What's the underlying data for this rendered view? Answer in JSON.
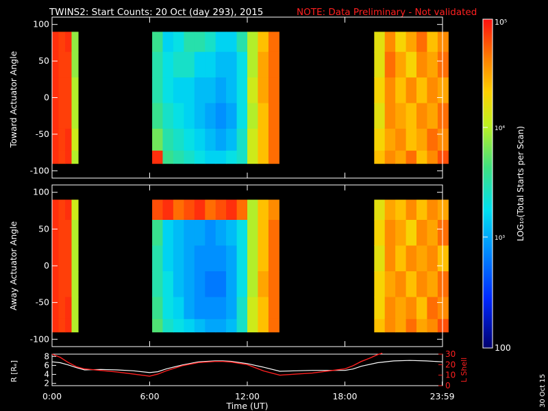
{
  "header": {
    "title": "TWINS2: Start Counts: 20 Oct (day 293), 2015",
    "note": "NOTE: Data Preliminary - Not validated"
  },
  "colorbar": {
    "tick_labels": [
      "10⁵",
      "10⁴",
      "10³",
      "100"
    ],
    "label": "LOG₁₀(Total Starts per Scan)"
  },
  "stamp": "30 Oct 15",
  "colors": {
    "background": "#000000",
    "axes": "#ffffff",
    "title_note": "#ff2020",
    "l_shell_line": "#ff2020",
    "r_line": "#ffffff"
  },
  "chart_data": [
    {
      "type": "heatmap",
      "ylabel": "Toward Actuator Angle",
      "ylim": [
        -110,
        110
      ],
      "yticks": [
        100,
        50,
        0,
        -50,
        -100
      ],
      "xlim": [
        0,
        24
      ],
      "x_hours": [
        0.0,
        0.4,
        0.8,
        1.2,
        6.15,
        6.8,
        7.45,
        8.1,
        8.75,
        9.4,
        10.05,
        10.7,
        11.35,
        12.0,
        12.65,
        13.3,
        19.8,
        20.45,
        21.1,
        21.75,
        22.4,
        23.05,
        23.7
      ],
      "y_angles": [
        80,
        45,
        10,
        -25,
        -60,
        -85
      ],
      "log_counts": [
        [
          4.9,
          4.85,
          4.9,
          3.9,
          3.6,
          3.2,
          3.3,
          3.5,
          3.5,
          3.4,
          3.2,
          3.2,
          3.5,
          4.0,
          4.4,
          4.7,
          4.2,
          4.6,
          4.3,
          4.5,
          4.7,
          4.4,
          4.6
        ],
        [
          4.9,
          4.85,
          4.85,
          3.9,
          3.5,
          3.3,
          3.4,
          3.4,
          3.2,
          3.2,
          3.1,
          3.1,
          3.3,
          4.0,
          4.5,
          4.7,
          4.2,
          4.7,
          4.5,
          4.3,
          4.6,
          4.5,
          4.7
        ],
        [
          4.9,
          4.85,
          4.85,
          4.0,
          3.5,
          3.3,
          3.2,
          3.2,
          3.1,
          3.1,
          3.0,
          3.1,
          3.3,
          4.1,
          4.5,
          4.7,
          4.3,
          4.6,
          4.4,
          4.6,
          4.4,
          4.6,
          4.5
        ],
        [
          4.9,
          4.85,
          4.85,
          4.0,
          3.6,
          3.4,
          3.3,
          3.2,
          3.1,
          3.0,
          2.9,
          3.0,
          3.3,
          4.0,
          4.4,
          4.7,
          4.2,
          4.6,
          4.5,
          4.4,
          4.6,
          4.5,
          4.7
        ],
        [
          4.9,
          4.85,
          4.9,
          4.1,
          3.8,
          3.5,
          3.4,
          3.3,
          3.2,
          3.1,
          3.0,
          3.1,
          3.4,
          4.1,
          4.4,
          4.7,
          4.3,
          4.5,
          4.6,
          4.4,
          4.5,
          4.7,
          4.6
        ],
        [
          4.9,
          4.85,
          4.9,
          4.0,
          4.9,
          3.6,
          3.5,
          3.4,
          3.3,
          3.2,
          3.2,
          3.3,
          3.4,
          4.1,
          4.4,
          4.7,
          4.4,
          4.6,
          4.5,
          4.7,
          4.4,
          4.6,
          4.8
        ]
      ]
    },
    {
      "type": "heatmap",
      "ylabel": "Away Actuator Angle",
      "ylim": [
        -110,
        110
      ],
      "yticks": [
        100,
        50,
        0,
        -50,
        -100
      ],
      "xlim": [
        0,
        24
      ],
      "x_hours": [
        0.0,
        0.4,
        0.8,
        1.2,
        6.15,
        6.8,
        7.45,
        8.1,
        8.75,
        9.4,
        10.05,
        10.7,
        11.35,
        12.0,
        12.65,
        13.3,
        19.8,
        20.45,
        21.1,
        21.75,
        22.4,
        23.05,
        23.7
      ],
      "y_angles": [
        80,
        45,
        10,
        -25,
        -60,
        -85
      ],
      "log_counts": [
        [
          4.9,
          4.85,
          4.9,
          4.1,
          4.8,
          4.9,
          4.7,
          4.8,
          4.9,
          4.7,
          4.8,
          4.9,
          4.7,
          4.0,
          4.4,
          4.6,
          4.2,
          4.5,
          4.4,
          4.6,
          4.4,
          4.6,
          4.5
        ],
        [
          4.9,
          4.85,
          4.85,
          4.0,
          3.6,
          3.2,
          3.1,
          3.0,
          3.0,
          2.9,
          3.0,
          3.1,
          3.3,
          4.0,
          4.4,
          4.7,
          4.3,
          4.6,
          4.5,
          4.3,
          4.6,
          4.5,
          4.7
        ],
        [
          4.9,
          4.85,
          4.85,
          4.0,
          3.5,
          3.2,
          3.1,
          3.0,
          2.9,
          2.9,
          2.9,
          3.0,
          3.3,
          4.0,
          4.4,
          4.7,
          4.2,
          4.6,
          4.4,
          4.6,
          4.5,
          4.6,
          4.4
        ],
        [
          4.9,
          4.85,
          4.85,
          4.0,
          3.5,
          3.3,
          3.1,
          3.0,
          2.9,
          2.8,
          2.8,
          3.0,
          3.3,
          4.0,
          4.5,
          4.7,
          4.3,
          4.5,
          4.6,
          4.4,
          4.6,
          4.5,
          4.7
        ],
        [
          4.9,
          4.85,
          4.9,
          4.0,
          3.6,
          3.3,
          3.2,
          3.0,
          2.9,
          2.9,
          2.9,
          3.0,
          3.4,
          4.1,
          4.4,
          4.7,
          4.3,
          4.6,
          4.5,
          4.6,
          4.4,
          4.7,
          4.6
        ],
        [
          4.9,
          4.85,
          4.9,
          4.0,
          3.7,
          3.4,
          3.3,
          3.2,
          3.1,
          3.0,
          3.0,
          3.1,
          3.4,
          4.1,
          4.4,
          4.7,
          4.4,
          4.6,
          4.5,
          4.7,
          4.5,
          4.6,
          4.8
        ]
      ]
    },
    {
      "type": "line",
      "ylabel_left": "R [Rₑ]",
      "ylabel_right": "L Shell",
      "xlabel": "Time (UT)",
      "x_tick_labels": [
        "0:00",
        "6:00",
        "12:00",
        "18:00",
        "23:59"
      ],
      "x_ticks_hours": [
        0,
        6,
        12,
        18,
        23.983
      ],
      "ylim_left": [
        1.5,
        8.5
      ],
      "yticks_left": [
        2,
        4,
        6,
        8
      ],
      "ylim_right": [
        0,
        30
      ],
      "yticks_right": [
        0,
        10,
        20,
        30
      ],
      "series": [
        {
          "name": "R",
          "axis": "left",
          "x": [
            0,
            0.5,
            1,
            1.5,
            2,
            3,
            4,
            5,
            6,
            6.5,
            7,
            8,
            9,
            10,
            10.5,
            11,
            12,
            13,
            14,
            15,
            16,
            17,
            18,
            18.5,
            19,
            20,
            21,
            22,
            23,
            23.98
          ],
          "y": [
            6.8,
            6.6,
            6.1,
            5.5,
            5.0,
            5.1,
            5.0,
            4.8,
            4.4,
            4.6,
            5.2,
            6.1,
            6.8,
            7.0,
            7.0,
            6.9,
            6.4,
            5.6,
            4.7,
            4.8,
            4.9,
            4.9,
            4.9,
            5.2,
            5.8,
            6.6,
            7.0,
            7.1,
            7.0,
            6.8
          ]
        },
        {
          "name": "L Shell",
          "axis": "right",
          "x": [
            0,
            0.5,
            1,
            1.5,
            2,
            3,
            4,
            5,
            6,
            6.5,
            7,
            8,
            9,
            10,
            10.5,
            11,
            12,
            13,
            14,
            15,
            16,
            17,
            18,
            18.5,
            19,
            19.5,
            20,
            20.3
          ],
          "y": [
            30,
            27,
            22,
            18,
            16,
            14.5,
            13,
            11,
            9,
            11,
            14,
            19,
            22,
            23,
            23,
            22.5,
            20,
            14,
            10,
            11,
            12,
            14,
            16,
            19,
            23,
            26,
            29.5,
            31
          ]
        }
      ]
    }
  ]
}
